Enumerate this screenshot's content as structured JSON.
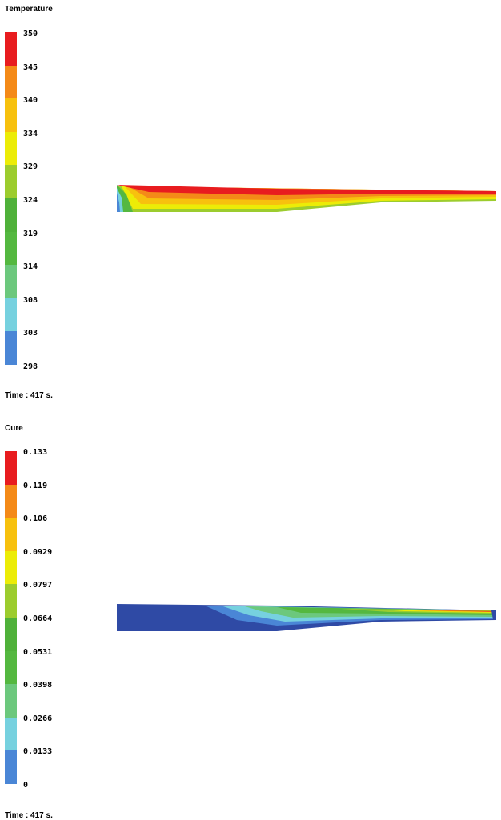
{
  "colors": [
    "#2f4aa5",
    "#4a86d6",
    "#76d1df",
    "#6cc87d",
    "#54b840",
    "#4fb13a",
    "#9ccc2e",
    "#ecec07",
    "#f7c10e",
    "#f48a18",
    "#e81c1f"
  ],
  "temperature": {
    "title": "Temperature",
    "levels": [
      "350",
      "345",
      "340",
      "334",
      "329",
      "324",
      "319",
      "314",
      "308",
      "303",
      "298"
    ],
    "time_label": "Time : 417 s."
  },
  "cure": {
    "title": "Cure",
    "levels": [
      "0.133",
      "0.119",
      "0.106",
      "0.0929",
      "0.0797",
      "0.0664",
      "0.0531",
      "0.0398",
      "0.0266",
      "0.0133",
      "0"
    ],
    "time_label": "Time : 417 s."
  }
}
